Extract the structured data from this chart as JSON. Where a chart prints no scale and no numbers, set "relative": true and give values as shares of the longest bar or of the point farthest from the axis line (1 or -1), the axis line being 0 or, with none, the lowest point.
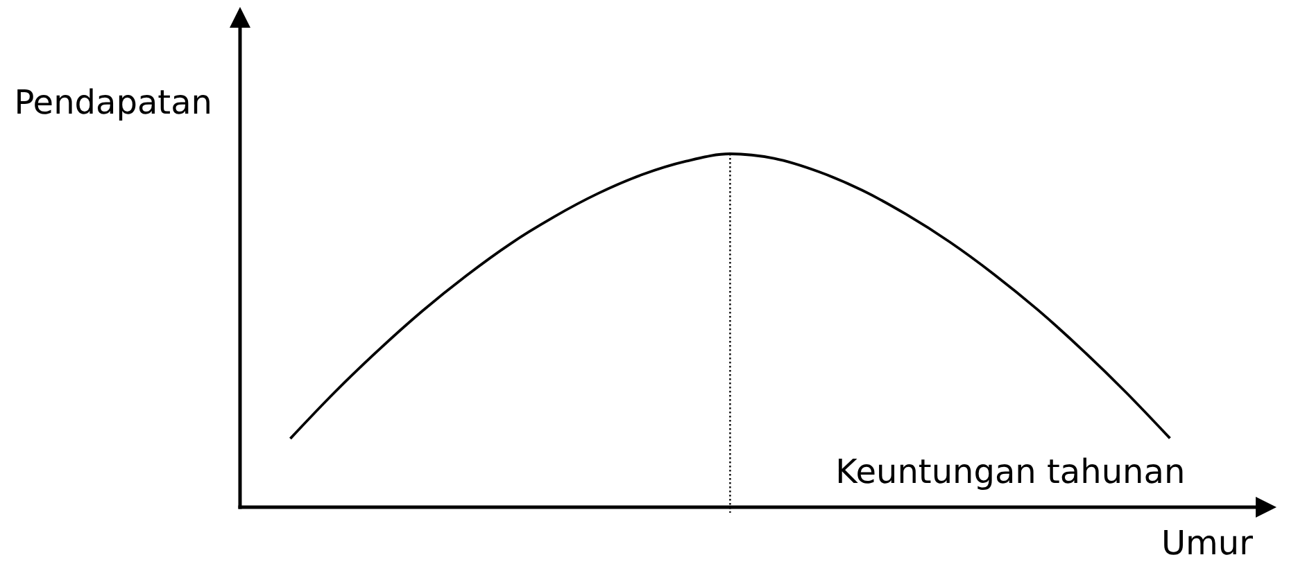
{
  "chart_data": {
    "type": "line",
    "xlabel": "Umur",
    "ylabel": "Pendapatan",
    "relative": true,
    "categories": [
      null,
      null,
      null,
      null,
      null,
      null,
      null,
      null,
      null,
      null,
      null,
      null,
      null,
      null,
      null,
      null,
      null,
      null,
      null,
      null,
      null
    ],
    "series": [
      {
        "name": "Keuntungan tahunan",
        "color": "#000000",
        "values": [
          0.194,
          0.324,
          0.444,
          0.555,
          0.655,
          0.745,
          0.822,
          0.888,
          0.941,
          0.979,
          1,
          0.987,
          0.95,
          0.897,
          0.829,
          0.75,
          0.659,
          0.558,
          0.446,
          0.325,
          0.195
        ]
      }
    ]
  }
}
